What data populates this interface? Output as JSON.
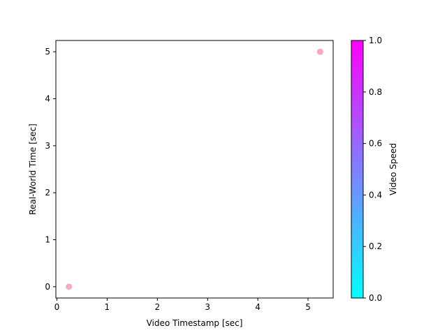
{
  "chart_data": {
    "type": "scatter",
    "xlabel": "Video Timestamp [sec]",
    "ylabel": "Real-World Time [sec]",
    "xlim": [
      -0.02,
      5.5
    ],
    "ylim": [
      -0.24,
      5.24
    ],
    "x_ticks": [
      0,
      1,
      2,
      3,
      4,
      5
    ],
    "y_ticks": [
      0,
      1,
      2,
      3,
      4,
      5
    ],
    "grid": false,
    "points": [
      {
        "x": 0.24,
        "y": 0.0,
        "color": "#f7a8c8"
      },
      {
        "x": 5.24,
        "y": 5.0,
        "color": "#f7a8c8"
      }
    ],
    "colorbar": {
      "label": "Video Speed",
      "colormap": "cool",
      "range": [
        0.0,
        1.0
      ],
      "ticks": [
        "0.0",
        "0.2",
        "0.4",
        "0.6",
        "0.8",
        "1.0"
      ],
      "color_low": "#00ffff",
      "color_high": "#ff00ff"
    }
  }
}
